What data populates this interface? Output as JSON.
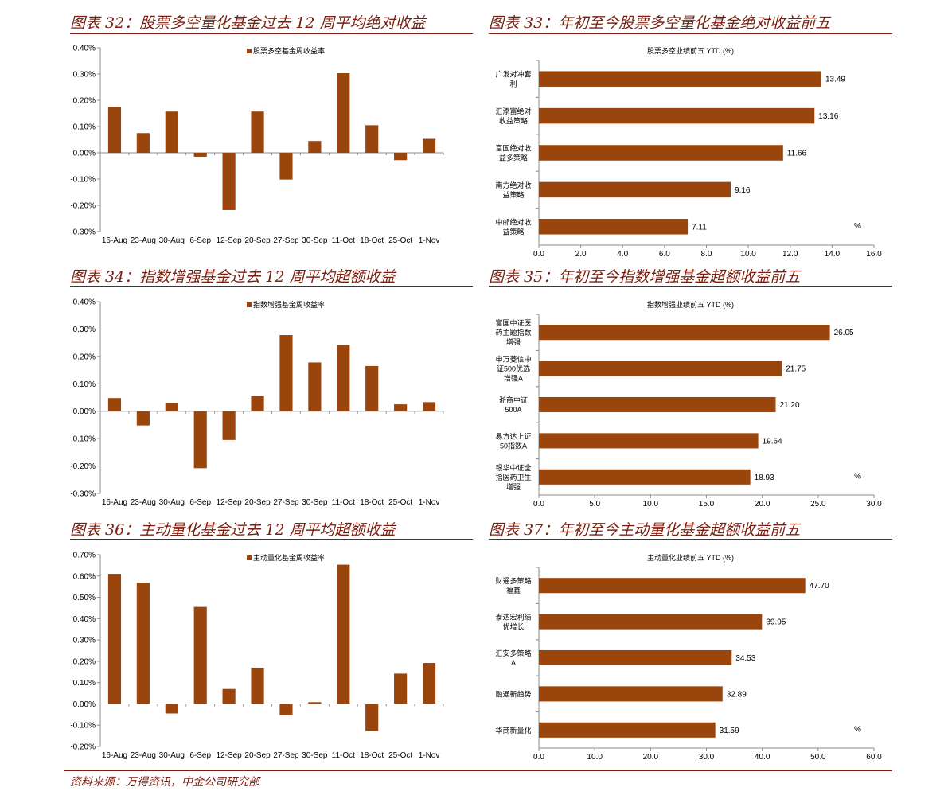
{
  "colors": {
    "bar": "#9a450c",
    "title": "#7a1f10",
    "axis": "#8c8c8c"
  },
  "source": "资料来源：万得资讯，中金公司研究部",
  "chart_data": [
    {
      "id": "fig32",
      "type": "bar",
      "title": "图表 32：股票多空量化基金过去 12 周平均绝对收益",
      "categories": [
        "16-Aug",
        "23-Aug",
        "30-Aug",
        "6-Sep",
        "12-Sep",
        "20-Sep",
        "27-Sep",
        "30-Sep",
        "11-Oct",
        "18-Oct",
        "25-Oct",
        "1-Nov"
      ],
      "series": [
        {
          "name": "股票多空基金周收益率",
          "values": [
            0.175,
            0.075,
            0.157,
            -0.015,
            -0.218,
            0.157,
            -0.102,
            0.045,
            0.303,
            0.105,
            -0.028,
            0.053
          ]
        }
      ],
      "yticks": [
        "0.40%",
        "0.30%",
        "0.20%",
        "0.10%",
        "0.00%",
        "-0.10%",
        "-0.20%",
        "-0.30%"
      ],
      "ylim": [
        -0.3,
        0.4
      ],
      "ystep": 0.1,
      "legend": "top-center"
    },
    {
      "id": "fig33",
      "type": "bar",
      "title": "图表 33：年初至今股票多空量化基金绝对收益前五",
      "subtitle": "股票多空业绩前五 YTD (%)",
      "categories": [
        [
          "广发对冲套",
          "利"
        ],
        [
          "汇添富绝对",
          "收益策略"
        ],
        [
          "富国绝对收",
          "益多策略"
        ],
        [
          "南方绝对收",
          "益策略"
        ],
        [
          "中邮绝对收",
          "益策略"
        ]
      ],
      "values": [
        13.49,
        13.16,
        11.66,
        9.16,
        7.11
      ],
      "data_labels": [
        "13.49",
        "13.16",
        "11.66",
        "9.16",
        "7.11"
      ],
      "xticks": [
        "0.0",
        "2.0",
        "4.0",
        "6.0",
        "8.0",
        "10.0",
        "12.0",
        "14.0",
        "16.0"
      ],
      "xlim": [
        0,
        16
      ],
      "unit": "%"
    },
    {
      "id": "fig34",
      "type": "bar",
      "title": "图表 34：指数增强基金过去 12 周平均超额收益",
      "categories": [
        "16-Aug",
        "23-Aug",
        "30-Aug",
        "6-Sep",
        "12-Sep",
        "20-Sep",
        "27-Sep",
        "30-Sep",
        "11-Oct",
        "18-Oct",
        "25-Oct",
        "1-Nov"
      ],
      "series": [
        {
          "name": "指数增强基金周收益率",
          "values": [
            0.048,
            -0.052,
            0.03,
            -0.208,
            -0.105,
            0.055,
            0.278,
            0.178,
            0.242,
            0.165,
            0.025,
            0.033
          ]
        }
      ],
      "yticks": [
        "0.40%",
        "0.30%",
        "0.20%",
        "0.10%",
        "0.00%",
        "-0.10%",
        "-0.20%",
        "-0.30%"
      ],
      "ylim": [
        -0.3,
        0.4
      ],
      "ystep": 0.1,
      "legend": "top-center"
    },
    {
      "id": "fig35",
      "type": "bar",
      "title": "图表 35：年初至今指数增强基金超额收益前五",
      "subtitle": "指数增强业绩前五 YTD (%)",
      "categories": [
        [
          "富国中证医",
          "药主题指数",
          "增强"
        ],
        [
          "申万菱信中",
          "证500优选",
          "增强A"
        ],
        [
          "浙商中证",
          "500A"
        ],
        [
          "易方达上证",
          "50指数A"
        ],
        [
          "银华中证全",
          "指医药卫生",
          "增强"
        ]
      ],
      "values": [
        26.05,
        21.75,
        21.2,
        19.64,
        18.93
      ],
      "data_labels": [
        "26.05",
        "21.75",
        "21.20",
        "19.64",
        "18.93"
      ],
      "xticks": [
        "0.0",
        "5.0",
        "10.0",
        "15.0",
        "20.0",
        "25.0",
        "30.0"
      ],
      "xlim": [
        0,
        30
      ],
      "unit": "%"
    },
    {
      "id": "fig36",
      "type": "bar",
      "title": "图表 36：主动量化基金过去 12 周平均超额收益",
      "categories": [
        "16-Aug",
        "23-Aug",
        "30-Aug",
        "6-Sep",
        "12-Sep",
        "20-Sep",
        "27-Sep",
        "30-Sep",
        "11-Oct",
        "18-Oct",
        "25-Oct",
        "1-Nov"
      ],
      "series": [
        {
          "name": "主动量化基金周收益率",
          "values": [
            0.61,
            0.568,
            -0.045,
            0.455,
            0.07,
            0.17,
            -0.053,
            0.008,
            0.653,
            -0.127,
            0.142,
            0.192
          ]
        }
      ],
      "yticks": [
        "0.70%",
        "0.60%",
        "0.50%",
        "0.40%",
        "0.30%",
        "0.20%",
        "0.10%",
        "0.00%",
        "-0.10%",
        "-0.20%"
      ],
      "ylim": [
        -0.2,
        0.7
      ],
      "ystep": 0.1,
      "legend": "top-center"
    },
    {
      "id": "fig37",
      "type": "bar",
      "title": "图表 37：年初至今主动量化基金超额收益前五",
      "subtitle": "主动量化业绩前五 YTD (%)",
      "categories": [
        [
          "财通多策略",
          "福鑫"
        ],
        [
          "泰达宏利绩",
          "优增长"
        ],
        [
          "汇安多策略",
          "A"
        ],
        [
          "融通新趋势"
        ],
        [
          "华商新量化"
        ]
      ],
      "values": [
        47.7,
        39.95,
        34.53,
        32.89,
        31.59
      ],
      "data_labels": [
        "47.70",
        "39.95",
        "34.53",
        "32.89",
        "31.59"
      ],
      "xticks": [
        "0.0",
        "10.0",
        "20.0",
        "30.0",
        "40.0",
        "50.0",
        "60.0"
      ],
      "xlim": [
        0,
        60
      ],
      "unit": "%"
    }
  ]
}
